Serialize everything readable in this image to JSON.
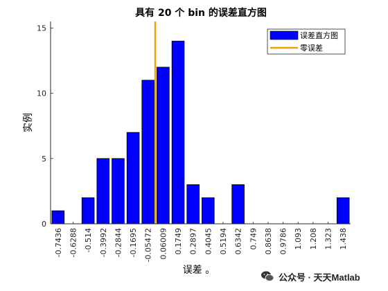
{
  "chart_data": {
    "type": "bar",
    "title": "具有 20 个 bin 的误差直方图",
    "xlabel": "误差 。",
    "ylabel": "实例",
    "categories": [
      "-0.7436",
      "-0.6288",
      "-0.514",
      "-0.3992",
      "-0.2844",
      "-0.1695",
      "-0.05472",
      "0.06009",
      "0.1749",
      "0.2897",
      "0.4045",
      "0.5194",
      "0.6342",
      "0.749",
      "0.8638",
      "0.9786",
      "1.093",
      "1.208",
      "1.323",
      "1.438"
    ],
    "values": [
      1,
      0,
      2,
      5,
      5,
      7,
      11,
      12,
      14,
      3,
      2,
      0,
      3,
      0,
      0,
      0,
      0,
      0,
      0,
      2
    ],
    "ylim": [
      0,
      15.5
    ],
    "yticks": [
      0,
      5,
      10,
      15
    ],
    "zero_error_position": 0,
    "series": [
      {
        "name": "误差直方图",
        "color": "#0000ff"
      },
      {
        "name": "零误差",
        "color": "#f0a000"
      }
    ],
    "legend_placement": "top-right",
    "grid": false
  },
  "watermark": {
    "icon": "wechat-icon",
    "text": "公众号 · 天天Matlab"
  }
}
